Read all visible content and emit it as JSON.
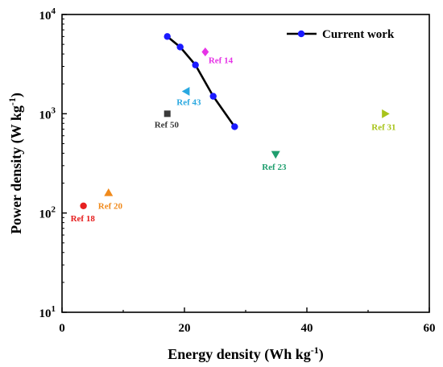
{
  "chart_data": {
    "type": "scatter",
    "xlabel": "Energy density (Wh kg",
    "xlabel_sup": "-1",
    "xlabel_end": ")",
    "ylabel": "Power density (W kg",
    "ylabel_sup": "-1",
    "ylabel_end": ")",
    "xlim": [
      0,
      60
    ],
    "ylim": [
      10,
      10000
    ],
    "y_scale": "log",
    "x_ticks": [
      {
        "value": 0,
        "label": "0"
      },
      {
        "value": 20,
        "label": "20"
      },
      {
        "value": 40,
        "label": "40"
      },
      {
        "value": 60,
        "label": "60"
      }
    ],
    "y_ticks": [
      {
        "value": 10,
        "base": "10",
        "exp": "1"
      },
      {
        "value": 100,
        "base": "10",
        "exp": "2"
      },
      {
        "value": 1000,
        "base": "10",
        "exp": "3"
      },
      {
        "value": 10000,
        "base": "10",
        "exp": "4"
      }
    ],
    "legend": {
      "position": "top-right",
      "entries": [
        "Current work"
      ]
    },
    "series": [
      {
        "name": "Current work",
        "color": "#1a1aff",
        "line_color": "#000000",
        "marker": "circle",
        "points": [
          {
            "x": 17.2,
            "y": 6000
          },
          {
            "x": 19.3,
            "y": 4700
          },
          {
            "x": 21.8,
            "y": 3100
          },
          {
            "x": 24.7,
            "y": 1500
          },
          {
            "x": 28.2,
            "y": 740
          }
        ]
      }
    ],
    "references": [
      {
        "label": "Ref 14",
        "x": 23.4,
        "y": 4200,
        "color": "#e633e6",
        "marker": "diamond"
      },
      {
        "label": "Ref 43",
        "x": 20.3,
        "y": 1680,
        "color": "#29a8e0",
        "marker": "triangle-left"
      },
      {
        "label": "Ref 50",
        "x": 17.2,
        "y": 1000,
        "color": "#3a3a3a",
        "marker": "square"
      },
      {
        "label": "Ref 23",
        "x": 34.9,
        "y": 390,
        "color": "#1f9e6e",
        "marker": "triangle-down"
      },
      {
        "label": "Ref 31",
        "x": 52.8,
        "y": 1000,
        "color": "#a8c41a",
        "marker": "triangle-right"
      },
      {
        "label": "Ref 20",
        "x": 7.6,
        "y": 160,
        "color": "#f08a1c",
        "marker": "triangle-up"
      },
      {
        "label": "Ref 18",
        "x": 3.5,
        "y": 118,
        "color": "#e62020",
        "marker": "circle"
      }
    ]
  }
}
